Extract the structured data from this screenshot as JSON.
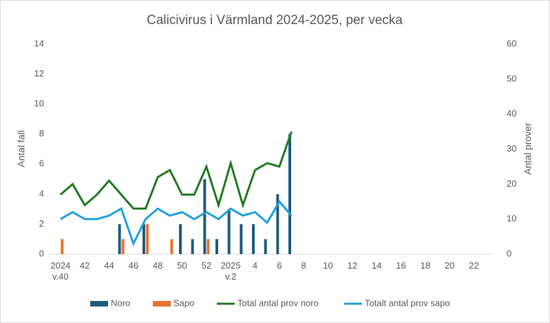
{
  "chart_data": {
    "type": "bar",
    "title": "Calicivirus i Värmland 2024-2025, per vecka",
    "y_label": "Antal fall",
    "y2_label": "Antal prover",
    "categories": [
      "2024\nv.40",
      null,
      "42",
      null,
      "44",
      null,
      "46",
      null,
      "48",
      null,
      "50",
      null,
      "52",
      null,
      "2025\nv.2",
      null,
      "4",
      null,
      "6",
      null,
      "8",
      null,
      "10",
      null,
      "12",
      null,
      "14",
      null,
      "16",
      null,
      "18",
      null,
      "20",
      null,
      "22",
      null
    ],
    "ylim": [
      0,
      14
    ],
    "yticks": [
      0,
      2,
      4,
      6,
      8,
      10,
      12,
      14
    ],
    "y2lim": [
      0,
      60
    ],
    "y2ticks": [
      0,
      10,
      20,
      30,
      40,
      50,
      60
    ],
    "legend": "bottom",
    "series": [
      {
        "name": "Noro",
        "type": "bar",
        "color": "#1f5c7e",
        "values": [
          null,
          null,
          null,
          null,
          null,
          2,
          null,
          2,
          null,
          null,
          2,
          1,
          5,
          1,
          3,
          2,
          2,
          1,
          4,
          8,
          null,
          null,
          null,
          null,
          null,
          null,
          null,
          null,
          null,
          null,
          null,
          null,
          null,
          null,
          null,
          null
        ]
      },
      {
        "name": "Sapo",
        "type": "bar",
        "color": "#e97132",
        "values": [
          1,
          null,
          null,
          null,
          null,
          1,
          null,
          2,
          null,
          1,
          null,
          null,
          1,
          null,
          null,
          null,
          null,
          null,
          null,
          null,
          null,
          null,
          null,
          null,
          null,
          null,
          null,
          null,
          null,
          null,
          null,
          null,
          null,
          null,
          null,
          null
        ]
      },
      {
        "name": "Total antal prov noro",
        "type": "line",
        "axis": "y2",
        "color": "#1e7a1e",
        "values": [
          17,
          20,
          14,
          17,
          21,
          17,
          13,
          13,
          22,
          24,
          17,
          17,
          25,
          14,
          26,
          14,
          24,
          26,
          25,
          35,
          null,
          null,
          null,
          null,
          null,
          null,
          null,
          null,
          null,
          null,
          null,
          null,
          null,
          null,
          null,
          null
        ]
      },
      {
        "name": "Totalt antal prov sapo",
        "type": "line",
        "axis": "y2",
        "color": "#1ea0dc",
        "values": [
          10,
          12,
          10,
          10,
          11,
          13,
          3,
          10,
          13,
          11,
          12,
          10,
          12,
          10,
          13,
          11,
          12,
          9,
          15,
          11,
          null,
          null,
          null,
          null,
          null,
          null,
          null,
          null,
          null,
          null,
          null,
          null,
          null,
          null,
          null,
          null
        ]
      }
    ]
  }
}
